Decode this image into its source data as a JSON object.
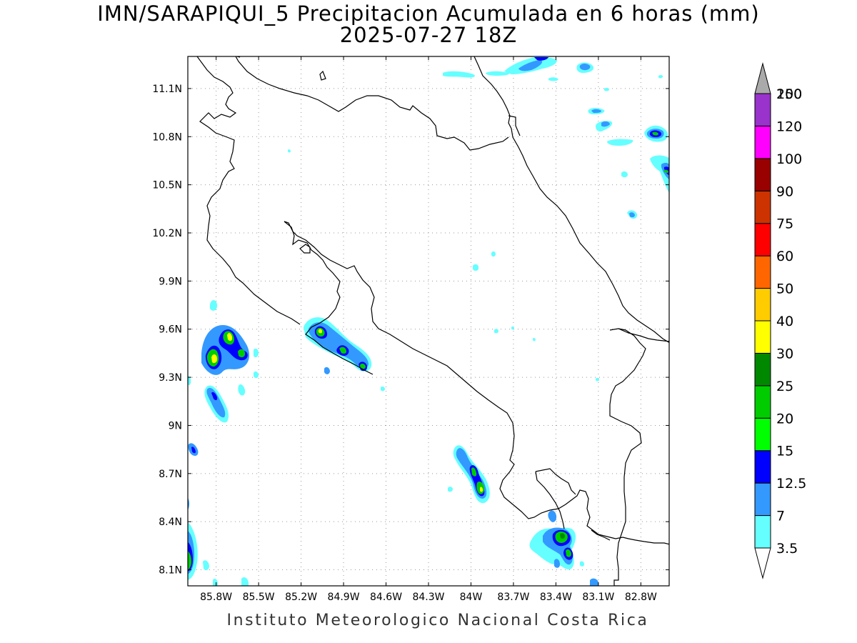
{
  "title": {
    "line1": "IMN/SARAPIQUI_5 Precipitacion Acumulada en 6 horas (mm)",
    "line2": "2025-07-27 18Z"
  },
  "credit": "Instituto Meteorologico Nacional Costa Rica",
  "map": {
    "lon_range": [
      -86.0,
      -82.6
    ],
    "lat_range": [
      8.0,
      11.3
    ],
    "lat_ticks": [
      {
        "value": 11.1,
        "label": "11.1N"
      },
      {
        "value": 10.8,
        "label": "10.8N"
      },
      {
        "value": 10.5,
        "label": "10.5N"
      },
      {
        "value": 10.2,
        "label": "10.2N"
      },
      {
        "value": 9.9,
        "label": "9.9N"
      },
      {
        "value": 9.6,
        "label": "9.6N"
      },
      {
        "value": 9.3,
        "label": "9.3N"
      },
      {
        "value": 9.0,
        "label": "9N"
      },
      {
        "value": 8.7,
        "label": "8.7N"
      },
      {
        "value": 8.4,
        "label": "8.4N"
      },
      {
        "value": 8.1,
        "label": "8.1N"
      }
    ],
    "lon_ticks": [
      {
        "value": -85.8,
        "label": "85.8W"
      },
      {
        "value": -85.5,
        "label": "85.5W"
      },
      {
        "value": -85.2,
        "label": "85.2W"
      },
      {
        "value": -84.9,
        "label": "84.9W"
      },
      {
        "value": -84.6,
        "label": "84.6W"
      },
      {
        "value": -84.3,
        "label": "84.3W"
      },
      {
        "value": -84.0,
        "label": "84W"
      },
      {
        "value": -83.7,
        "label": "83.7W"
      },
      {
        "value": -83.4,
        "label": "83.4W"
      },
      {
        "value": -83.1,
        "label": "83.1W"
      },
      {
        "value": -82.8,
        "label": "82.8W"
      }
    ],
    "grid": true
  },
  "colorbar": {
    "levels": [
      {
        "label": "3.5",
        "color": "#66ffff"
      },
      {
        "label": "7",
        "color": "#3399ff"
      },
      {
        "label": "12.5",
        "color": "#0000ff"
      },
      {
        "label": "15",
        "color": "#00ff00"
      },
      {
        "label": "20",
        "color": "#00cc00"
      },
      {
        "label": "25",
        "color": "#008800"
      },
      {
        "label": "30",
        "color": "#ffff00"
      },
      {
        "label": "40",
        "color": "#ffcc00"
      },
      {
        "label": "50",
        "color": "#ff6600"
      },
      {
        "label": "60",
        "color": "#ff0000"
      },
      {
        "label": "75",
        "color": "#cc3300"
      },
      {
        "label": "90",
        "color": "#990000"
      },
      {
        "label": "100",
        "color": "#ff00ff"
      },
      {
        "label": "120",
        "color": "#9933cc"
      },
      {
        "label": "150",
        "color": "#f5f5f5"
      },
      {
        "label": "200",
        "color": "#aaaaaa"
      }
    ]
  }
}
